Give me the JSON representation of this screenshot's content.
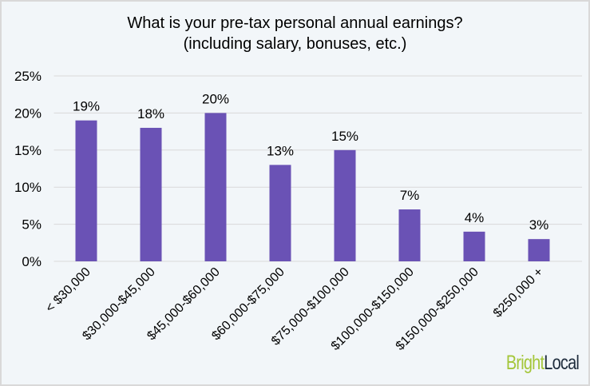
{
  "chart_data": {
    "type": "bar",
    "title_lines": [
      "What is your pre-tax personal annual earnings?",
      "(including salary, bonuses, etc.)"
    ],
    "categories": [
      "< $30,000",
      "$30,000-$45,000",
      "$45,000-$60,000",
      "$60,000-$75,000",
      "$75,000-$100,000",
      "$100,000-$150,000",
      "$150,000-$250,000",
      "$250,000 +"
    ],
    "values": [
      19,
      18,
      20,
      13,
      15,
      7,
      4,
      3
    ],
    "data_labels": [
      "19%",
      "18%",
      "20%",
      "13%",
      "15%",
      "7%",
      "4%",
      "3%"
    ],
    "yticks": [
      0,
      5,
      10,
      15,
      20,
      25
    ],
    "ytick_labels": [
      "0%",
      "5%",
      "10%",
      "15%",
      "20%",
      "25%"
    ],
    "ylim": [
      0,
      25
    ],
    "grid": true,
    "legend": "none",
    "bar_color": "#6a52b5",
    "background": "#f2f6f9"
  },
  "logo": {
    "part1": "Bright",
    "part2": "Local"
  }
}
